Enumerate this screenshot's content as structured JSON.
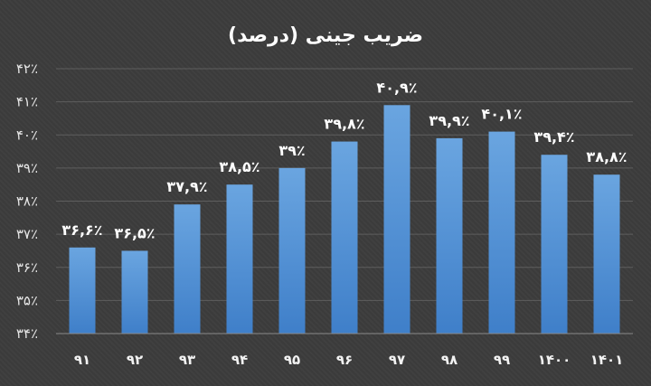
{
  "chart_data": {
    "type": "bar",
    "title": "ضریب جینی (درصد)",
    "xlabel": "",
    "ylabel": "",
    "categories": [
      "۹۱",
      "۹۲",
      "۹۳",
      "۹۴",
      "۹۵",
      "۹۶",
      "۹۷",
      "۹۸",
      "۹۹",
      "۱۴۰۰",
      "۱۴۰۱"
    ],
    "values": [
      36.6,
      36.5,
      37.9,
      38.5,
      39,
      39.8,
      40.9,
      39.9,
      40.1,
      39.4,
      38.8
    ],
    "data_labels": [
      "۳۶,۶٪",
      "۳۶,۵٪",
      "۳۷,۹٪",
      "۳۸,۵٪",
      "۳۹٪",
      "۳۹,۸٪",
      "۴۰,۹٪",
      "۳۹,۹٪",
      "۴۰,۱٪",
      "۳۹,۴٪",
      "۳۸,۸٪"
    ],
    "ylim": [
      34,
      42
    ],
    "yticks": [
      34,
      35,
      36,
      37,
      38,
      39,
      40,
      41,
      42
    ],
    "ytick_labels": [
      "۳۴٪",
      "۳۵٪",
      "۳۶٪",
      "۳۷٪",
      "۳۸٪",
      "۳۹٪",
      "۴۰٪",
      "۴۱٪",
      "۴۲٪"
    ],
    "grid": true,
    "legend": "none",
    "colors": {
      "bar_top": "#6aa5e0",
      "bar_bottom": "#3f7fc9",
      "background": "#3c3c3c"
    }
  }
}
